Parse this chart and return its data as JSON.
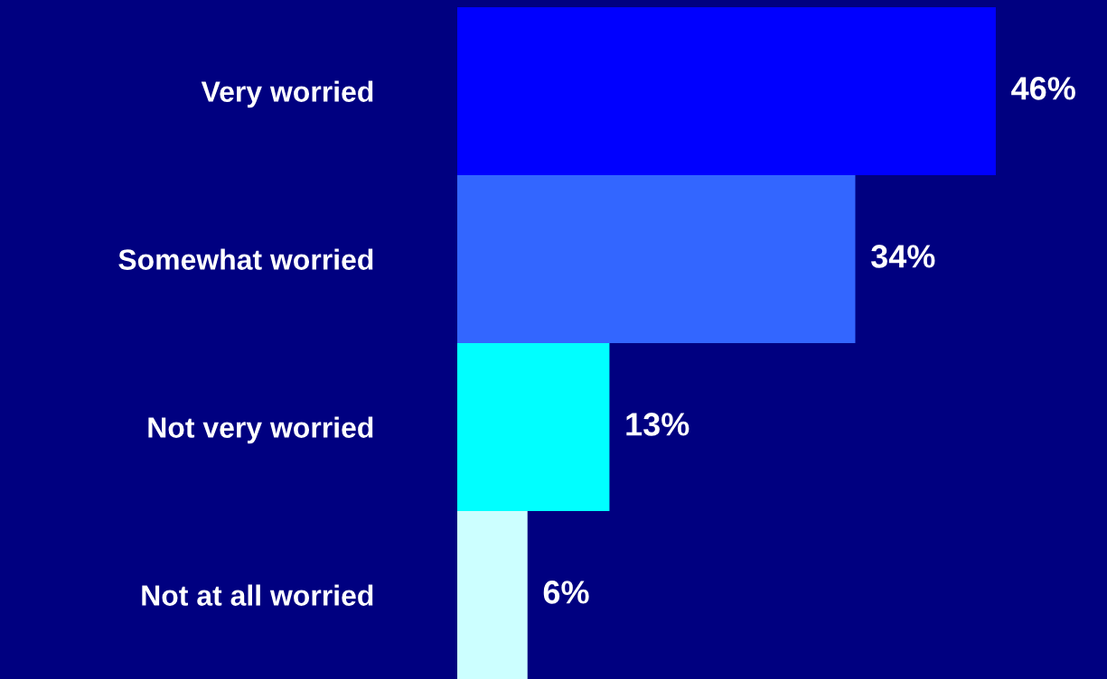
{
  "chart_data": {
    "type": "bar",
    "orientation": "horizontal",
    "categories": [
      "Very worried",
      "Somewhat worried",
      "Not very worried",
      "Not at all worried"
    ],
    "values": [
      46,
      34,
      13,
      6
    ],
    "colors": [
      "#0000ff",
      "#3366ff",
      "#00ffff",
      "#ccffff"
    ],
    "value_labels": [
      "46%",
      "34%",
      "13%",
      "6%"
    ],
    "xlim": [
      0,
      55.5
    ],
    "tick_labels": "y",
    "grid": false,
    "legend": false
  }
}
